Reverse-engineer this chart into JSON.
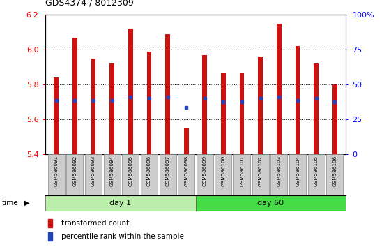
{
  "title": "GDS4374 / 8012309",
  "samples": [
    "GSM586091",
    "GSM586092",
    "GSM586093",
    "GSM586094",
    "GSM586095",
    "GSM586096",
    "GSM586097",
    "GSM586098",
    "GSM586099",
    "GSM586100",
    "GSM586101",
    "GSM586102",
    "GSM586103",
    "GSM586104",
    "GSM586105",
    "GSM586106"
  ],
  "bar_tops": [
    5.84,
    6.07,
    5.95,
    5.92,
    6.12,
    5.99,
    6.09,
    5.55,
    5.97,
    5.87,
    5.87,
    5.96,
    6.15,
    6.02,
    5.92,
    5.8
  ],
  "bar_bottoms": [
    5.4,
    5.4,
    5.4,
    5.4,
    5.4,
    5.4,
    5.4,
    5.4,
    5.4,
    5.4,
    5.4,
    5.4,
    5.4,
    5.4,
    5.4,
    5.4
  ],
  "blue_marker_vals": [
    5.71,
    5.71,
    5.71,
    5.71,
    5.73,
    5.72,
    5.73,
    5.67,
    5.72,
    5.7,
    5.7,
    5.72,
    5.73,
    5.71,
    5.72,
    5.7
  ],
  "day1_samples": 8,
  "day60_samples": 8,
  "ylim": [
    5.4,
    6.2
  ],
  "yticks_left": [
    5.4,
    5.6,
    5.8,
    6.0,
    6.2
  ],
  "yticks_right_pct": [
    0,
    25,
    50,
    75,
    100
  ],
  "right_ylabels": [
    "0",
    "25",
    "50",
    "75",
    "100%"
  ],
  "bar_color": "#cc1111",
  "blue_color": "#2244bb",
  "day1_color": "#bbeeaa",
  "day60_color": "#44dd44",
  "sample_label_bg": "#cccccc",
  "legend_red": "transformed count",
  "legend_blue": "percentile rank within the sample",
  "time_label": "time",
  "day1_label": "day 1",
  "day60_label": "day 60",
  "bar_width": 0.25
}
